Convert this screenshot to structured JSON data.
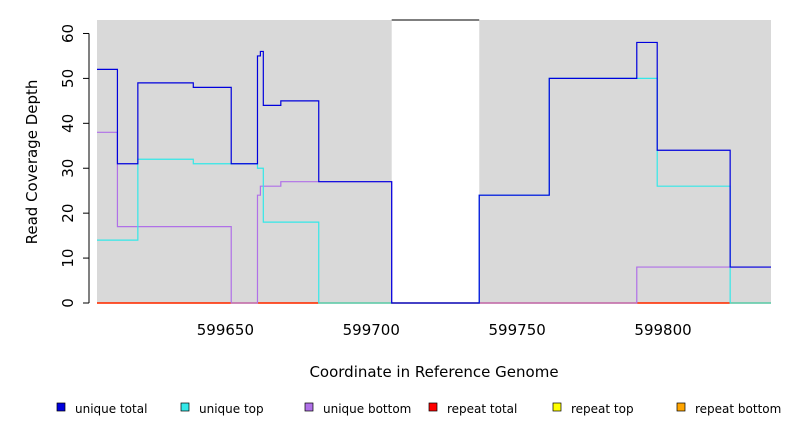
{
  "chart_data": {
    "type": "line",
    "step": true,
    "xlabel": "Coordinate in Reference Genome",
    "ylabel": "Read Coverage Depth",
    "xlim": [
      599606,
      599837
    ],
    "ylim": [
      0,
      63
    ],
    "xticks": [
      599650,
      599700,
      599750,
      599800
    ],
    "yticks": [
      0,
      10,
      20,
      30,
      40,
      50,
      60
    ],
    "plot_background": "#d9d9d9",
    "gap_region": [
      599707,
      599737
    ],
    "gap_color": "#ffffff",
    "legend_position": "bottom",
    "series": [
      {
        "name": "unique total",
        "color": "#0000dd",
        "points": [
          [
            599606,
            52
          ],
          [
            599613,
            52
          ],
          [
            599613,
            31
          ],
          [
            599620,
            31
          ],
          [
            599620,
            49
          ],
          [
            599639,
            49
          ],
          [
            599639,
            48
          ],
          [
            599652,
            48
          ],
          [
            599652,
            31
          ],
          [
            599661,
            31
          ],
          [
            599661,
            55
          ],
          [
            599662,
            55
          ],
          [
            599662,
            56
          ],
          [
            599663,
            56
          ],
          [
            599663,
            44
          ],
          [
            599669,
            44
          ],
          [
            599669,
            45
          ],
          [
            599682,
            45
          ],
          [
            599682,
            27
          ],
          [
            599707,
            27
          ],
          [
            599707,
            0
          ],
          [
            599737,
            0
          ],
          [
            599737,
            24
          ],
          [
            599761,
            24
          ],
          [
            599761,
            50
          ],
          [
            599791,
            50
          ],
          [
            599791,
            58
          ],
          [
            599798,
            58
          ],
          [
            599798,
            34
          ],
          [
            599823,
            34
          ],
          [
            599823,
            8
          ],
          [
            599837,
            8
          ]
        ]
      },
      {
        "name": "unique top",
        "color": "#33e8e8",
        "points": [
          [
            599606,
            14
          ],
          [
            599620,
            14
          ],
          [
            599620,
            32
          ],
          [
            599639,
            32
          ],
          [
            599639,
            31
          ],
          [
            599661,
            31
          ],
          [
            599661,
            30
          ],
          [
            599663,
            30
          ],
          [
            599663,
            18
          ],
          [
            599682,
            18
          ],
          [
            599682,
            0
          ],
          [
            599737,
            0
          ],
          [
            599737,
            24
          ],
          [
            599761,
            24
          ],
          [
            599761,
            50
          ],
          [
            599798,
            50
          ],
          [
            599798,
            26
          ],
          [
            599823,
            26
          ],
          [
            599823,
            0
          ],
          [
            599837,
            0
          ]
        ]
      },
      {
        "name": "unique bottom",
        "color": "#b070e8",
        "points": [
          [
            599606,
            38
          ],
          [
            599613,
            38
          ],
          [
            599613,
            17
          ],
          [
            599652,
            17
          ],
          [
            599652,
            0
          ],
          [
            599661,
            0
          ],
          [
            599661,
            24
          ],
          [
            599662,
            24
          ],
          [
            599662,
            26
          ],
          [
            599669,
            26
          ],
          [
            599669,
            27
          ],
          [
            599707,
            27
          ],
          [
            599707,
            0
          ],
          [
            599791,
            0
          ],
          [
            599791,
            8
          ],
          [
            599837,
            8
          ]
        ]
      },
      {
        "name": "repeat total",
        "color": "#ff0000",
        "points": [
          [
            599606,
            0
          ],
          [
            599837,
            0
          ]
        ]
      },
      {
        "name": "repeat top",
        "color": "#ffff00",
        "points": [
          [
            599606,
            0
          ],
          [
            599837,
            0
          ]
        ]
      },
      {
        "name": "repeat bottom",
        "color": "#ffa500",
        "points": [
          [
            599606,
            0
          ],
          [
            599837,
            0
          ]
        ]
      }
    ]
  }
}
